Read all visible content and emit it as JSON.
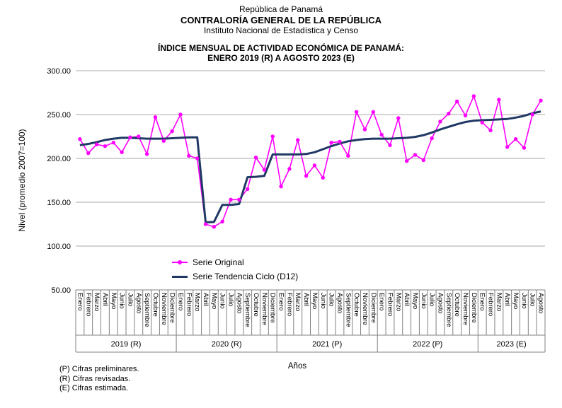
{
  "header": {
    "line1": "República de Panamá",
    "line2": "CONTRALORÍA GENERAL DE LA REPÚBLICA",
    "line3": "Instituto Nacional de Estadística y Censo"
  },
  "chart_data": {
    "type": "line",
    "title_line1": "ÍNDICE MENSUAL DE ACTIVIDAD ECONÓMICA DE PANAMÁ:",
    "title_line2": "ENERO 2019 (R) A AGOSTO 2023 (E)",
    "grid": true,
    "grid_color": "#a8a8a8",
    "table_line_color": "#808080",
    "y_axis": {
      "title": "Nivel (promedio 2007=100)",
      "min": 50,
      "max": 300,
      "ticks": [
        {
          "value": 300,
          "label": "300.00"
        },
        {
          "value": 250,
          "label": "250.00"
        },
        {
          "value": 200,
          "label": "200.00"
        },
        {
          "value": 150,
          "label": "150.00"
        },
        {
          "value": 100,
          "label": "100.00"
        },
        {
          "value": 50,
          "label": "50.00"
        }
      ]
    },
    "x_axis": {
      "title": "Años",
      "year_groups": [
        {
          "label": "2019 (R)",
          "months": [
            "Enero",
            "Febrero",
            "Marzo",
            "Abril",
            "Mayo",
            "Junio",
            "Julio",
            "Agosto",
            "Septiembre",
            "Octubre",
            "Noviembre",
            "Diciembre"
          ]
        },
        {
          "label": "2020 (R)",
          "months": [
            "Enero",
            "Febrero",
            "Marzo",
            "Abril",
            "Mayo",
            "Junio",
            "Julio",
            "Agosto",
            "Septiembre",
            "Octubre",
            "Noviembre",
            "Diciembre"
          ]
        },
        {
          "label": "2021 (P)",
          "months": [
            "Enero",
            "Febrero",
            "Marzo",
            "Abril",
            "Mayo",
            "Junio",
            "Julio",
            "Agosto",
            "Septiembre",
            "Octubre",
            "Noviembre",
            "Diciembre"
          ]
        },
        {
          "label": "2022 (P)",
          "months": [
            "Enero",
            "Febrero",
            "Marzo",
            "Abril",
            "Mayo",
            "Junio",
            "Julio",
            "Agosto",
            "Septiembre",
            "Octubre",
            "Noviembre",
            "Diciembre"
          ]
        },
        {
          "label": "2023 (E)",
          "months": [
            "Enero",
            "Febrero",
            "Marzo",
            "Abril",
            "Mayo",
            "Junio",
            "Julio",
            "Agosto"
          ]
        }
      ]
    },
    "legend": [
      {
        "label": "Serie Original",
        "color": "#FF00FF",
        "line_width": 2,
        "marker": true
      },
      {
        "label": "Serie Tendencia Ciclo (D12)",
        "color": "#1F3864",
        "line_width": 3,
        "marker": false
      }
    ],
    "legend_position": "inside-bottom-left",
    "series": [
      {
        "name": "Serie Original",
        "color": "#FF00FF",
        "stroke_width": 1.6,
        "marker": true,
        "values": [
          222,
          206,
          216,
          214,
          218,
          207,
          224,
          225,
          205,
          247,
          220,
          231,
          250,
          203,
          200,
          125,
          122,
          128,
          153,
          153,
          165,
          201,
          187,
          225,
          168,
          188,
          221,
          180,
          192,
          178,
          218,
          219,
          203,
          253,
          233,
          253,
          227,
          215,
          246,
          197,
          204,
          198,
          223,
          242,
          251,
          265,
          249,
          271,
          241,
          232,
          267,
          213,
          222,
          212,
          250,
          266
        ]
      },
      {
        "name": "Serie Tendencia Ciclo (D12)",
        "color": "#1F3864",
        "stroke_width": 3,
        "marker": false,
        "values": [
          215,
          216.5,
          218.5,
          221,
          222.5,
          223.5,
          223.5,
          223,
          222.5,
          222.5,
          222.5,
          223,
          223.5,
          224,
          224,
          127,
          127.5,
          147,
          147,
          148,
          178.5,
          179,
          180,
          204.5,
          204.5,
          204.5,
          204.5,
          205,
          207,
          210.5,
          214,
          217,
          219.5,
          221,
          222,
          222.5,
          222.5,
          222.5,
          223,
          223.5,
          224.5,
          226.5,
          229.5,
          233,
          236,
          239,
          241.5,
          243,
          243.5,
          244,
          244.5,
          245,
          246.5,
          248.5,
          251.5,
          253.5
        ]
      }
    ]
  },
  "footnotes": [
    "(P) Cifras preliminares.",
    "(R) Cifras revisadas.",
    "(E) Cifras estimada."
  ]
}
